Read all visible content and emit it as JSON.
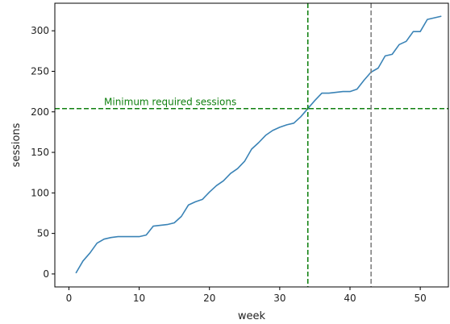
{
  "chart_data": {
    "type": "line",
    "xlabel": "week",
    "ylabel": "sessions",
    "xlim": [
      -2,
      54
    ],
    "ylim": [
      -16,
      334
    ],
    "xticks": [
      0,
      10,
      20,
      30,
      40,
      50
    ],
    "yticks": [
      0,
      50,
      100,
      150,
      200,
      250,
      300
    ],
    "grid": false,
    "series": [
      {
        "color": "#3a83b6",
        "x": [
          1,
          2,
          3,
          4,
          5,
          6,
          7,
          8,
          9,
          10,
          11,
          12,
          13,
          14,
          15,
          16,
          17,
          18,
          19,
          20,
          21,
          22,
          23,
          24,
          25,
          26,
          27,
          28,
          29,
          30,
          31,
          32,
          33,
          34,
          35,
          36,
          37,
          38,
          39,
          40,
          41,
          42,
          43,
          44,
          45,
          46,
          47,
          48,
          49,
          50,
          51,
          52,
          53
        ],
        "y": [
          1,
          16,
          26,
          38,
          43,
          45,
          46,
          46,
          46,
          46,
          48,
          59,
          60,
          61,
          63,
          71,
          85,
          89,
          92,
          101,
          109,
          115,
          124,
          130,
          139,
          154,
          162,
          171,
          177,
          181,
          184,
          186,
          194,
          204,
          214,
          223,
          223,
          224,
          225,
          225,
          228,
          239,
          249,
          254,
          269,
          271,
          283,
          287,
          299,
          299,
          314,
          316,
          318
        ]
      }
    ],
    "annotations": [
      {
        "type": "hline",
        "y": 204,
        "color": "#108010",
        "style": "dashed",
        "label": "Minimum required sessions",
        "label_x": 5
      },
      {
        "type": "vline",
        "x": 34,
        "color": "#108010",
        "style": "dashed"
      },
      {
        "type": "vline",
        "x": 43,
        "color": "#808080",
        "style": "dashed"
      }
    ]
  }
}
